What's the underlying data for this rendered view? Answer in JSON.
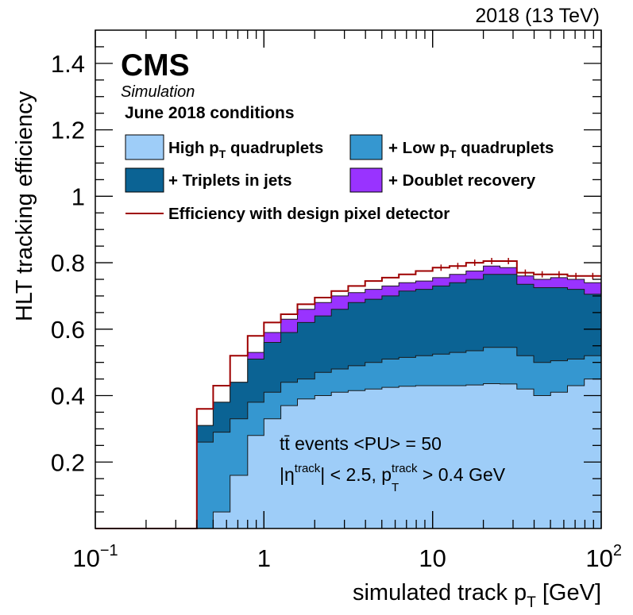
{
  "chart_data": {
    "type": "area",
    "title": "",
    "energy_label": "2018 (13 TeV)",
    "experiment": "CMS",
    "subtitle": "Simulation",
    "conditions": "June 2018 conditions",
    "xlabel": {
      "main": "simulated track p",
      "sub": "T",
      "unit": " [GeV]"
    },
    "ylabel": "HLT tracking efficiency",
    "xscale": "log",
    "xlim": [
      0.1,
      100
    ],
    "ylim": [
      0,
      1.5
    ],
    "x_ticks": [
      {
        "value": 0.1,
        "base": "10",
        "exp": "−1"
      },
      {
        "value": 1,
        "base": "1",
        "exp": ""
      },
      {
        "value": 10,
        "base": "10",
        "exp": ""
      },
      {
        "value": 100,
        "base": "10",
        "exp": "2"
      }
    ],
    "y_ticks": [
      {
        "value": 0.2,
        "label": "0.2"
      },
      {
        "value": 0.4,
        "label": "0.4"
      },
      {
        "value": 0.6,
        "label": "0.6"
      },
      {
        "value": 0.8,
        "label": "0.8"
      },
      {
        "value": 1.0,
        "label": "1"
      },
      {
        "value": 1.2,
        "label": "1.2"
      },
      {
        "value": 1.4,
        "label": "1.4"
      }
    ],
    "bin_edges": [
      0.1,
      0.4,
      0.5,
      0.63,
      0.8,
      1.0,
      1.26,
      1.58,
      2.0,
      2.51,
      3.16,
      3.98,
      5.01,
      6.31,
      7.94,
      10.0,
      12.6,
      15.8,
      20.0,
      25.1,
      31.6,
      39.8,
      50.1,
      63.1,
      79.4,
      100.0
    ],
    "series": [
      {
        "name": "High p_T quadruplets",
        "legend": {
          "pre": "High p",
          "sub": "T",
          "post": " quadruplets"
        },
        "color": "#9ecdf8",
        "values": [
          0.0,
          0.0,
          0.05,
          0.16,
          0.28,
          0.33,
          0.37,
          0.39,
          0.4,
          0.41,
          0.415,
          0.42,
          0.425,
          0.428,
          0.43,
          0.43,
          0.43,
          0.432,
          0.436,
          0.435,
          0.42,
          0.4,
          0.41,
          0.43,
          0.45
        ]
      },
      {
        "name": "+ Low p_T quadruplets",
        "legend": {
          "pre": "+ Low p",
          "sub": "T",
          "post": " quadruplets"
        },
        "color": "#3597d0",
        "values": [
          0.0,
          0.26,
          0.29,
          0.33,
          0.38,
          0.41,
          0.44,
          0.45,
          0.47,
          0.48,
          0.49,
          0.5,
          0.51,
          0.515,
          0.52,
          0.525,
          0.53,
          0.535,
          0.545,
          0.545,
          0.52,
          0.5,
          0.505,
          0.51,
          0.52
        ]
      },
      {
        "name": "+ Triplets in jets",
        "legend": {
          "pre": "+ Triplets in jets",
          "sub": "",
          "post": ""
        },
        "color": "#0b6394",
        "values": [
          0.0,
          0.31,
          0.38,
          0.44,
          0.51,
          0.56,
          0.59,
          0.62,
          0.64,
          0.66,
          0.68,
          0.69,
          0.7,
          0.715,
          0.72,
          0.73,
          0.74,
          0.75,
          0.765,
          0.765,
          0.735,
          0.725,
          0.725,
          0.72,
          0.705
        ]
      },
      {
        "name": "+ Doublet recovery",
        "legend": {
          "pre": "+ Doublet recovery",
          "sub": "",
          "post": ""
        },
        "color": "#9933ff",
        "values": [
          0.0,
          0.31,
          0.38,
          0.44,
          0.53,
          0.59,
          0.63,
          0.66,
          0.68,
          0.7,
          0.71,
          0.72,
          0.73,
          0.74,
          0.745,
          0.755,
          0.765,
          0.775,
          0.79,
          0.785,
          0.76,
          0.75,
          0.755,
          0.75,
          0.74
        ]
      }
    ],
    "design_line": {
      "name": "Efficiency with design pixel detector",
      "color": "#9e0000",
      "values": [
        0.0,
        0.36,
        0.43,
        0.52,
        0.58,
        0.62,
        0.645,
        0.675,
        0.695,
        0.715,
        0.73,
        0.745,
        0.755,
        0.765,
        0.775,
        0.785,
        0.79,
        0.8,
        0.805,
        0.805,
        0.77,
        0.765,
        0.765,
        0.76,
        0.76
      ]
    },
    "annotations": {
      "line1": "tt̄ events <PU> = 50",
      "eta_pre": "|η",
      "eta_sup": "track",
      "eta_mid": "| < 2.5, p",
      "pt_sup": "track",
      "pt_sub": "T",
      "pt_post": " > 0.4 GeV"
    }
  }
}
